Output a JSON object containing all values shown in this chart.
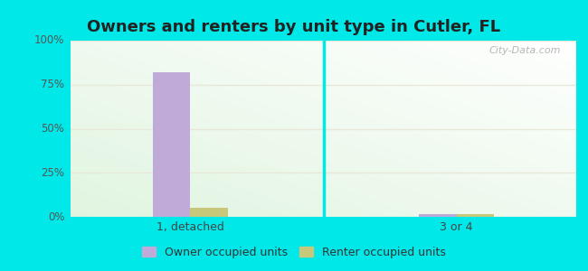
{
  "title": "Owners and renters by unit type in Cutler, FL",
  "title_fontsize": 13,
  "title_fontweight": "bold",
  "categories": [
    "1, detached",
    "3 or 4"
  ],
  "owner_values": [
    82,
    1.5
  ],
  "renter_values": [
    5,
    1.5
  ],
  "owner_color": "#c0aad8",
  "renter_color": "#c8c87a",
  "ylim": [
    0,
    100
  ],
  "yticks": [
    0,
    25,
    50,
    75,
    100
  ],
  "ytick_labels": [
    "0%",
    "25%",
    "50%",
    "75%",
    "100%"
  ],
  "outer_background": "#00e8e8",
  "legend_owner": "Owner occupied units",
  "legend_renter": "Renter occupied units",
  "watermark": "City-Data.com",
  "bar_width": 0.28,
  "group_positions": [
    1.0,
    3.0
  ],
  "grid_color": "#e8e8d8",
  "divider_x": 2.0,
  "xlim": [
    0.1,
    3.9
  ]
}
